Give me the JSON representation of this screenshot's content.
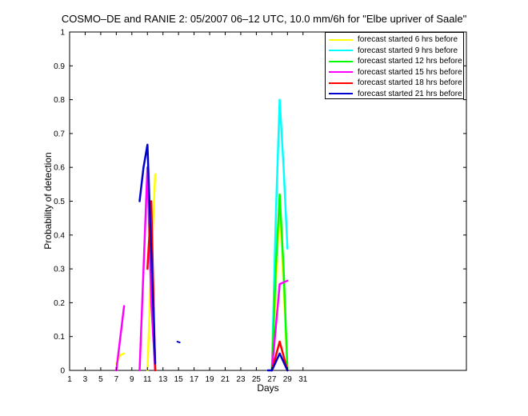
{
  "chart_data": {
    "type": "line",
    "title": "COSMO–DE and RANIE 2: 05/2007 06–12 UTC, 10.0 mm/6h for \"Elbe upriver of Saale\"",
    "xlabel": "Days",
    "ylabel": "Probability of detection",
    "xlim": [
      1,
      52
    ],
    "ylim": [
      0,
      1
    ],
    "xticks": [
      1,
      3,
      5,
      7,
      9,
      11,
      13,
      15,
      17,
      19,
      21,
      23,
      25,
      27,
      29,
      31
    ],
    "yticks": [
      0,
      0.1,
      0.2,
      0.3,
      0.4,
      0.5,
      0.6,
      0.7,
      0.8,
      0.9,
      1
    ],
    "ytick_labels": [
      "0",
      "0.1",
      "0.2",
      "0.3",
      "0.4",
      "0.5",
      "0.6",
      "0.7",
      "0.8",
      "0.9",
      "1"
    ],
    "grid": false,
    "legend_position": "top-right",
    "series": [
      {
        "name": "forecast started 6 hrs before",
        "color": "#ffff00",
        "segments": [
          [
            [
              7,
              0.02
            ],
            [
              7.5,
              0.045
            ],
            [
              8,
              0.05
            ]
          ],
          [
            [
              11,
              0
            ],
            [
              11.5,
              0.32
            ],
            [
              12,
              0.58
            ]
          ],
          [
            [
              27,
              0
            ],
            [
              28,
              0.5
            ],
            [
              29,
              0
            ]
          ]
        ]
      },
      {
        "name": "forecast started 9 hrs before",
        "color": "#00ffff",
        "segments": [
          [
            [
              27,
              0
            ],
            [
              27.5,
              0.45
            ],
            [
              28,
              0.8
            ],
            [
              28.5,
              0.6
            ],
            [
              29,
              0.36
            ]
          ]
        ]
      },
      {
        "name": "forecast started 12 hrs before",
        "color": "#00ff00",
        "segments": [
          [
            [
              27,
              0
            ],
            [
              27.5,
              0.3
            ],
            [
              28,
              0.52
            ],
            [
              28.5,
              0.3
            ],
            [
              29,
              0
            ]
          ]
        ]
      },
      {
        "name": "forecast started 15 hrs before",
        "color": "#ff00ff",
        "segments": [
          [
            [
              7,
              0
            ],
            [
              8,
              0.19
            ]
          ],
          [
            [
              10,
              0
            ],
            [
              10.5,
              0.3
            ],
            [
              11,
              0.6
            ],
            [
              11.5,
              0.2
            ],
            [
              12,
              0
            ]
          ],
          [
            [
              27,
              0
            ],
            [
              28,
              0.255
            ],
            [
              29,
              0.265
            ]
          ]
        ]
      },
      {
        "name": "forecast started 18 hrs before",
        "color": "#ff0000",
        "segments": [
          [
            [
              11,
              0.3
            ],
            [
              11.5,
              0.5
            ],
            [
              12,
              0
            ]
          ],
          [
            [
              27,
              0
            ],
            [
              28,
              0.085
            ],
            [
              29,
              0
            ]
          ]
        ]
      },
      {
        "name": "forecast started 21 hrs before",
        "color": "#0000cc",
        "segments": [
          [
            [
              10,
              0.5
            ],
            [
              10.5,
              0.6
            ],
            [
              11,
              0.667
            ],
            [
              11.5,
              0.35
            ],
            [
              12,
              0.02
            ]
          ],
          [
            [
              15,
              0.085
            ]
          ],
          [
            [
              26.5,
              0
            ],
            [
              27,
              0
            ],
            [
              28,
              0.05
            ],
            [
              29,
              0
            ]
          ]
        ]
      }
    ]
  }
}
